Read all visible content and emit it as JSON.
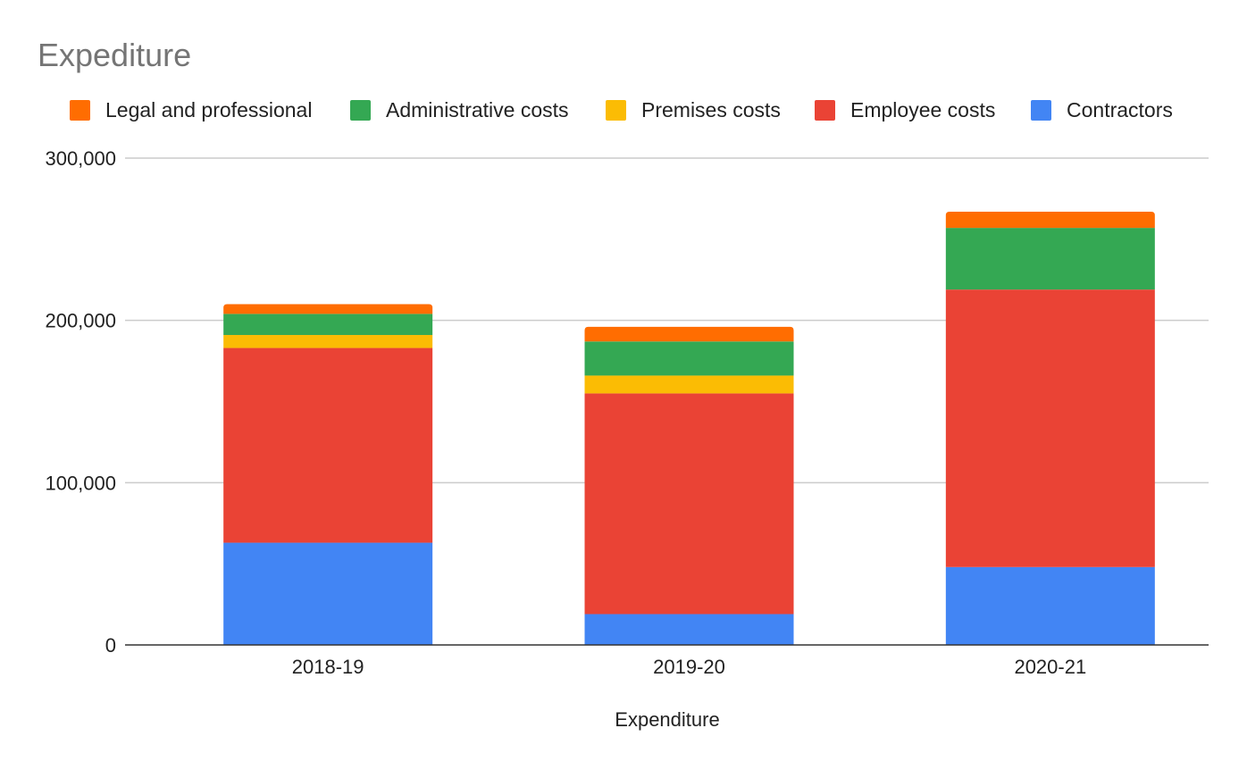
{
  "chart_data": {
    "type": "bar",
    "stacked": true,
    "title": "Expediture",
    "xlabel": "Expenditure",
    "ylabel": "",
    "categories": [
      "2018-19",
      "2019-20",
      "2020-21"
    ],
    "ylim": [
      0,
      300000
    ],
    "yticks": [
      0,
      100000,
      200000,
      300000
    ],
    "ytick_labels": [
      "0",
      "100,000",
      "200,000",
      "300,000"
    ],
    "grid": true,
    "legend_position": "top",
    "series": [
      {
        "name": "Contractors",
        "color": "#4285F4",
        "values": [
          63000,
          19000,
          48000
        ]
      },
      {
        "name": "Employee costs",
        "color": "#EA4335",
        "values": [
          120000,
          136000,
          171000
        ]
      },
      {
        "name": "Premises costs",
        "color": "#FBBC04",
        "values": [
          8000,
          11000,
          0
        ]
      },
      {
        "name": "Administrative costs",
        "color": "#34A853",
        "values": [
          13000,
          21000,
          38000
        ]
      },
      {
        "name": "Legal and professional",
        "color": "#FF6D01",
        "values": [
          6000,
          9000,
          10000
        ]
      }
    ],
    "legend_order": [
      "Legal and professional",
      "Administrative costs",
      "Premises costs",
      "Employee costs",
      "Contractors"
    ]
  }
}
